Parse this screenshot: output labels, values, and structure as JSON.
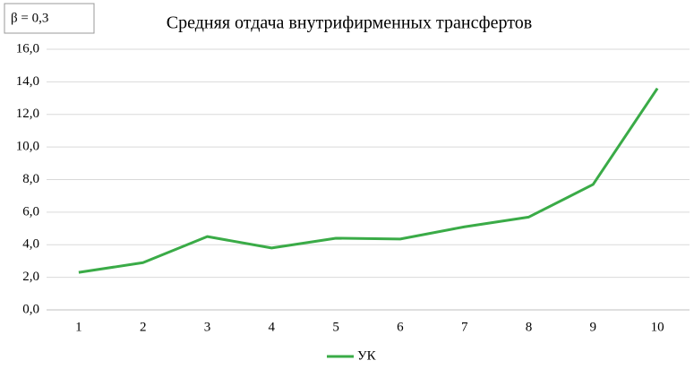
{
  "chart_data": {
    "type": "line",
    "title": "Средняя отдача внутрифирменных трансфертов",
    "annotation": "β = 0,3",
    "categories": [
      "1",
      "2",
      "3",
      "4",
      "5",
      "6",
      "7",
      "8",
      "9",
      "10"
    ],
    "series": [
      {
        "name": "УК",
        "color": "#3aab47",
        "values": [
          2.3,
          2.9,
          4.5,
          3.8,
          4.4,
          4.35,
          5.1,
          5.7,
          7.7,
          13.6
        ]
      }
    ],
    "ylim": [
      0,
      16
    ],
    "yticks": [
      {
        "value": 0,
        "label": "0,0"
      },
      {
        "value": 2,
        "label": "2,0"
      },
      {
        "value": 4,
        "label": "4,0"
      },
      {
        "value": 6,
        "label": "6,0"
      },
      {
        "value": 8,
        "label": "8,0"
      },
      {
        "value": 10,
        "label": "10,0"
      },
      {
        "value": 12,
        "label": "12,0"
      },
      {
        "value": 14,
        "label": "14,0"
      },
      {
        "value": 16,
        "label": "16,0"
      }
    ],
    "grid": true,
    "legend": "bottom"
  }
}
